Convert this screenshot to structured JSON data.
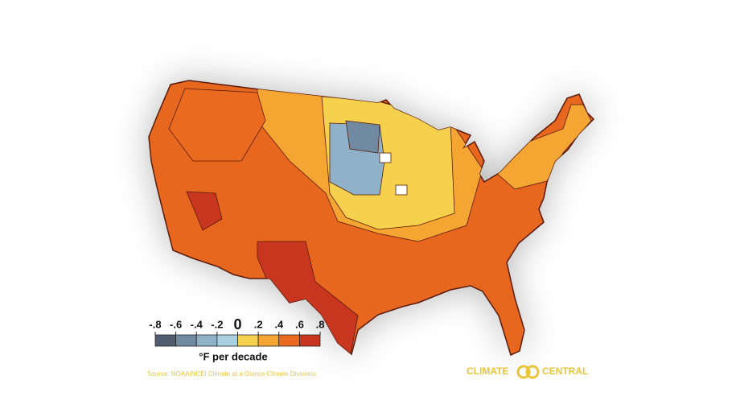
{
  "legend": {
    "ticks": [
      {
        "value": -0.8,
        "label": "-.8"
      },
      {
        "value": -0.6,
        "label": "-.6"
      },
      {
        "value": -0.4,
        "label": "-.4"
      },
      {
        "value": -0.2,
        "label": "-.2"
      },
      0,
      {
        "value": 0.2,
        "label": ".2"
      },
      {
        "value": 0.4,
        "label": ".4"
      },
      {
        "value": 0.6,
        "label": ".6"
      },
      {
        "value": 0.8,
        "label": ".8"
      }
    ],
    "colors": [
      "#4f5d6e",
      "#6f8aa1",
      "#8fb2c8",
      "#a9cfe0",
      "#f6d14e",
      "#f5a532",
      "#ea6b20",
      "#c9361f"
    ],
    "unit": "°F per decade"
  },
  "source": "Source: NOAA/NCEI Climate at a Glance Climate Divisions",
  "brand": {
    "left": "CLIMATE",
    "right": "CENTRAL"
  }
}
